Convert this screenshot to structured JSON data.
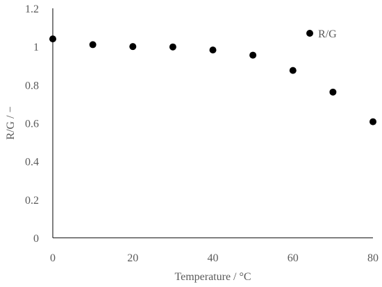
{
  "chart_data": {
    "type": "scatter",
    "title": "",
    "xlabel": "Temperature / °C",
    "ylabel": "R/G / −",
    "xlim": [
      0,
      80
    ],
    "ylim": [
      0,
      1.2
    ],
    "xticks": [
      "0",
      "20",
      "40",
      "60",
      "80"
    ],
    "yticks": [
      "0",
      "0.2",
      "0.4",
      "0.6",
      "0.8",
      "1",
      "1.2"
    ],
    "grid": false,
    "legend_position": "top-right",
    "series": [
      {
        "name": "R/G",
        "color": "#000000",
        "marker": "circle",
        "x": [
          0,
          10,
          20,
          30,
          40,
          50,
          60,
          70,
          80
        ],
        "y": [
          1.04,
          1.01,
          1.0,
          0.998,
          0.982,
          0.955,
          0.875,
          0.762,
          0.607
        ]
      }
    ]
  }
}
